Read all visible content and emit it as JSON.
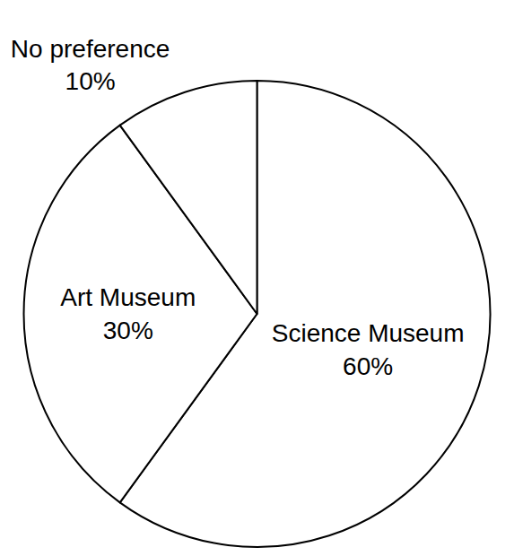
{
  "chart_data": {
    "type": "pie",
    "categories": [
      "Science Museum",
      "Art Museum",
      "No preference"
    ],
    "values": [
      60,
      30,
      10
    ],
    "value_labels": [
      "60%",
      "30%",
      "10%"
    ],
    "colors": [
      "#ffffff",
      "#ffffff",
      "#ffffff"
    ],
    "data_labels": true
  }
}
